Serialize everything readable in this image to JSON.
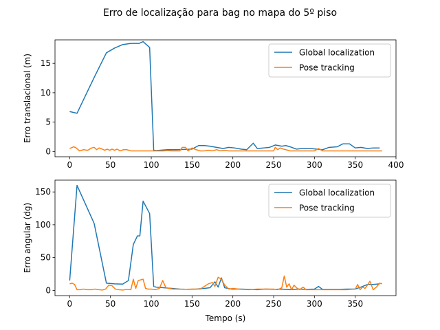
{
  "figure": {
    "suptitle": "Erro de localização para bag no mapa do 5º piso"
  },
  "chart_data": [
    {
      "type": "line",
      "title": "",
      "xlabel": "",
      "ylabel": "Erro translacional (m)",
      "xlim": [
        -18,
        400
      ],
      "ylim": [
        -0.9,
        19.0
      ],
      "xticks": [
        0,
        50,
        100,
        150,
        200,
        250,
        300,
        350,
        400
      ],
      "yticks": [
        0,
        5,
        10,
        15
      ],
      "legend": "top-right",
      "series": [
        {
          "name": "Global localization",
          "color": "#1f77b4",
          "x": [
            0,
            9,
            30,
            45,
            55,
            65,
            75,
            85,
            90,
            98,
            103,
            106,
            110,
            120,
            130,
            140,
            150,
            158,
            165,
            172,
            180,
            188,
            195,
            202,
            210,
            217,
            225,
            230,
            238,
            245,
            252,
            260,
            265,
            270,
            278,
            285,
            295,
            303,
            310,
            318,
            328,
            335,
            343,
            350,
            357,
            365,
            372,
            380
          ],
          "y": [
            6.8,
            6.5,
            12.6,
            16.8,
            17.6,
            18.2,
            18.4,
            18.4,
            18.7,
            17.7,
            0.2,
            0.15,
            0.2,
            0.3,
            0.3,
            0.35,
            0.4,
            1.0,
            1.0,
            0.9,
            0.7,
            0.5,
            0.7,
            0.6,
            0.4,
            0.3,
            1.4,
            0.5,
            0.6,
            0.7,
            1.1,
            0.9,
            1.0,
            0.8,
            0.4,
            0.5,
            0.5,
            0.4,
            0.3,
            0.7,
            0.8,
            1.3,
            1.3,
            0.6,
            0.7,
            0.5,
            0.6,
            0.6
          ]
        },
        {
          "name": "Pose tracking",
          "color": "#ff7f0e",
          "x": [
            0,
            5,
            8,
            12,
            17,
            22,
            27,
            30,
            33,
            36,
            40,
            43,
            46,
            49,
            52,
            55,
            58,
            62,
            66,
            70,
            75,
            80,
            85,
            90,
            95,
            100,
            105,
            110,
            115,
            120,
            125,
            130,
            135,
            138,
            142,
            145,
            150,
            155,
            160,
            165,
            170,
            175,
            180,
            185,
            190,
            195,
            200,
            210,
            220,
            230,
            240,
            250,
            252,
            255,
            258,
            262,
            265,
            270,
            275,
            280,
            290,
            300,
            305,
            310,
            320,
            330,
            340,
            350,
            360,
            370,
            383
          ],
          "y": [
            0.5,
            0.8,
            0.6,
            0.1,
            0.3,
            0.2,
            0.6,
            0.7,
            0.3,
            0.6,
            0.4,
            0.2,
            0.4,
            0.2,
            0.4,
            0.2,
            0.4,
            0.1,
            0.3,
            0.3,
            0.1,
            0.1,
            0.1,
            0.1,
            0.1,
            0.1,
            0.1,
            0.1,
            0.1,
            0.15,
            0.1,
            0.1,
            0.1,
            0.7,
            0.7,
            0.1,
            0.6,
            0.3,
            0.1,
            0.1,
            0.2,
            0.1,
            0.3,
            0.1,
            0.2,
            0.1,
            0.1,
            0.1,
            0.1,
            0.1,
            0.1,
            0.1,
            0.7,
            0.3,
            0.6,
            0.4,
            0.3,
            0.1,
            0.1,
            0.1,
            0.1,
            0.1,
            0.5,
            0.1,
            0.1,
            0.1,
            0.1,
            0.1,
            0.1,
            0.1,
            0.1
          ]
        }
      ]
    },
    {
      "type": "line",
      "title": "",
      "xlabel": "Tempo (s)",
      "ylabel": "Erro angular (dg)",
      "xlim": [
        -18,
        400
      ],
      "ylim": [
        -8,
        168
      ],
      "xticks": [
        0,
        50,
        100,
        150,
        200,
        250,
        300,
        350
      ],
      "yticks": [
        0,
        50,
        100,
        150
      ],
      "legend": "top-right",
      "series": [
        {
          "name": "Global localization",
          "color": "#1f77b4",
          "x": [
            0,
            9,
            30,
            45,
            55,
            65,
            72,
            78,
            83,
            86,
            90,
            98,
            103,
            106,
            115,
            125,
            135,
            145,
            155,
            165,
            172,
            178,
            182,
            186,
            190,
            198,
            210,
            220,
            230,
            240,
            250,
            260,
            270,
            280,
            290,
            300,
            305,
            310,
            320,
            330,
            340,
            350,
            357,
            365,
            372,
            380
          ],
          "y": [
            15,
            160,
            102,
            11,
            10,
            9.5,
            15,
            70,
            83,
            83,
            136,
            117,
            6,
            5,
            4,
            3,
            2,
            1.5,
            2,
            3,
            4,
            13,
            5,
            19,
            4,
            2,
            2,
            1.5,
            1,
            2,
            1.5,
            2,
            1,
            2,
            1.5,
            2,
            6,
            1.5,
            1.5,
            1.5,
            2,
            2,
            5,
            9,
            9,
            10
          ]
        },
        {
          "name": "Pose tracking",
          "color": "#ff7f0e",
          "x": [
            0,
            3,
            6,
            9,
            13,
            17,
            22,
            27,
            31,
            36,
            40,
            44,
            48,
            52,
            56,
            60,
            65,
            70,
            75,
            78,
            81,
            84,
            87,
            90,
            93,
            96,
            100,
            105,
            110,
            114,
            118,
            122,
            126,
            130,
            140,
            150,
            160,
            170,
            175,
            178,
            182,
            186,
            190,
            195,
            200,
            210,
            220,
            230,
            240,
            250,
            255,
            260,
            263,
            266,
            269,
            272,
            275,
            278,
            282,
            286,
            290,
            300,
            310,
            320,
            330,
            340,
            350,
            353,
            356,
            359,
            362,
            365,
            368,
            372,
            376,
            380,
            383
          ],
          "y": [
            10,
            11,
            9,
            1,
            1,
            2,
            1,
            1,
            2,
            1,
            0.5,
            2,
            8,
            7,
            2,
            1,
            0.5,
            1.5,
            1,
            17,
            3,
            15,
            16,
            17,
            3,
            2,
            2,
            1,
            3,
            15,
            4,
            3,
            2,
            2,
            1.5,
            2,
            2,
            10,
            12,
            6,
            20,
            17,
            8,
            2,
            3,
            1.5,
            1,
            2,
            2,
            2,
            1,
            4,
            22,
            5,
            10,
            1,
            8,
            4,
            1,
            5,
            1,
            1,
            1,
            1,
            1,
            1,
            2,
            9,
            1,
            5,
            3,
            8,
            14,
            1,
            5,
            11,
            10
          ]
        }
      ]
    }
  ]
}
